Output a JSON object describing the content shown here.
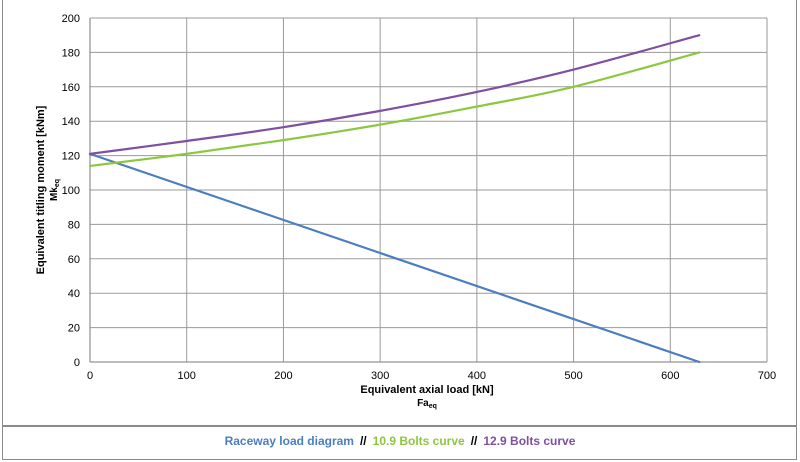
{
  "chart_data": {
    "type": "line",
    "xlabel": "Equivalent axial load [kN]",
    "xlabel_sub": "Fa",
    "xlabel_sub_index": "eq",
    "ylabel": "Equivalent titling moment [kNm]",
    "ylabel_sub": "Mk",
    "ylabel_sub_index": "eq",
    "xlim": [
      0,
      700
    ],
    "ylim": [
      0,
      200
    ],
    "x_ticks": [
      0,
      100,
      200,
      300,
      400,
      500,
      600,
      700
    ],
    "y_ticks": [
      0,
      20,
      40,
      60,
      80,
      100,
      120,
      140,
      160,
      180,
      200
    ],
    "grid": true,
    "legend_position": "bottom",
    "series": [
      {
        "name": "Raceway load diagram",
        "color": "#4a7ebf",
        "x": [
          0,
          630
        ],
        "y": [
          121,
          0
        ]
      },
      {
        "name": "10.9 Bolts curve",
        "color": "#8dc63f",
        "x": [
          0,
          100,
          200,
          300,
          400,
          500,
          630
        ],
        "y": [
          114,
          121,
          129,
          138,
          148.5,
          160,
          180
        ]
      },
      {
        "name": "12.9 Bolts curve",
        "color": "#7f4fa0",
        "x": [
          0,
          100,
          200,
          300,
          400,
          500,
          630
        ],
        "y": [
          121,
          128.5,
          136.5,
          146,
          157,
          170,
          190
        ]
      }
    ]
  },
  "legend": {
    "separator": "//"
  }
}
